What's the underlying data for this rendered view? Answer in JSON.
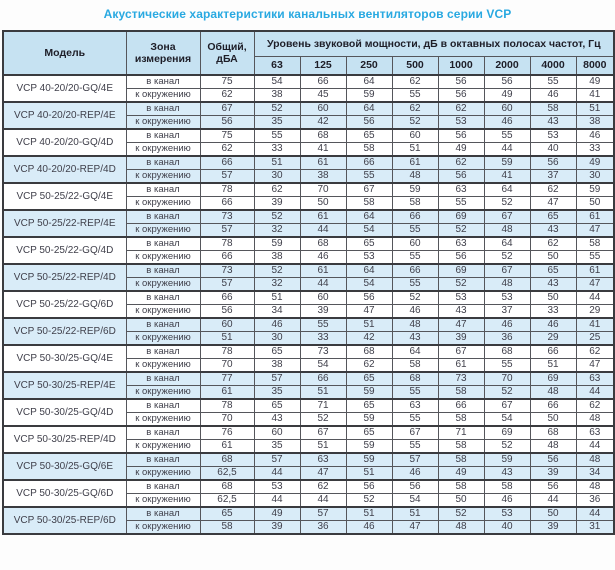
{
  "title": "Акустические характеристики канальных вентиляторов  серии VCP",
  "colors": {
    "title_blue": "#29a9e1",
    "header_bg": "#c6e2f2",
    "shaded_row_bg": "#d9ecf8",
    "border": "#55565b"
  },
  "table": {
    "headers": {
      "model": "Модель",
      "zone": "Зона\nизмерения",
      "total": "Общий,\nдБА",
      "span_header": "Уровень звуковой мощности, дБ в октавных полосах частот, Гц",
      "frequencies": [
        "63",
        "125",
        "250",
        "500",
        "1000",
        "2000",
        "4000",
        "8000"
      ]
    },
    "zone_labels": {
      "canal": "в канал",
      "ambient": "к окружению"
    },
    "rows": [
      {
        "model": "VCP 40-20/20-GQ/4E",
        "shaded": false,
        "canal": {
          "total": "75",
          "bands": [
            "54",
            "66",
            "64",
            "62",
            "56",
            "56",
            "55",
            "49"
          ]
        },
        "ambient": {
          "total": "62",
          "bands": [
            "38",
            "45",
            "59",
            "55",
            "56",
            "49",
            "46",
            "41"
          ]
        }
      },
      {
        "model": "VCP 40-20/20-REP/4E",
        "shaded": true,
        "canal": {
          "total": "67",
          "bands": [
            "52",
            "60",
            "64",
            "62",
            "62",
            "60",
            "58",
            "51"
          ]
        },
        "ambient": {
          "total": "56",
          "bands": [
            "35",
            "42",
            "56",
            "52",
            "53",
            "46",
            "43",
            "38"
          ]
        }
      },
      {
        "model": "VCP 40-20/20-GQ/4D",
        "shaded": false,
        "canal": {
          "total": "75",
          "bands": [
            "55",
            "68",
            "65",
            "60",
            "56",
            "55",
            "53",
            "46"
          ]
        },
        "ambient": {
          "total": "62",
          "bands": [
            "33",
            "41",
            "58",
            "51",
            "49",
            "44",
            "40",
            "33"
          ]
        }
      },
      {
        "model": "VCP 40-20/20-REP/4D",
        "shaded": true,
        "canal": {
          "total": "66",
          "bands": [
            "51",
            "61",
            "66",
            "61",
            "62",
            "59",
            "56",
            "49"
          ]
        },
        "ambient": {
          "total": "57",
          "bands": [
            "30",
            "38",
            "55",
            "48",
            "56",
            "41",
            "37",
            "30"
          ]
        }
      },
      {
        "model": "VCP 50-25/22-GQ/4E",
        "shaded": false,
        "canal": {
          "total": "78",
          "bands": [
            "62",
            "70",
            "67",
            "59",
            "63",
            "64",
            "62",
            "59"
          ]
        },
        "ambient": {
          "total": "66",
          "bands": [
            "39",
            "50",
            "58",
            "58",
            "55",
            "52",
            "47",
            "50"
          ]
        }
      },
      {
        "model": "VCP 50-25/22-REP/4E",
        "shaded": true,
        "canal": {
          "total": "73",
          "bands": [
            "52",
            "61",
            "64",
            "66",
            "69",
            "67",
            "65",
            "61"
          ]
        },
        "ambient": {
          "total": "57",
          "bands": [
            "32",
            "44",
            "54",
            "55",
            "52",
            "48",
            "43",
            "47"
          ]
        }
      },
      {
        "model": "VCP 50-25/22-GQ/4D",
        "shaded": false,
        "canal": {
          "total": "78",
          "bands": [
            "59",
            "68",
            "65",
            "60",
            "63",
            "64",
            "62",
            "58"
          ]
        },
        "ambient": {
          "total": "66",
          "bands": [
            "38",
            "46",
            "53",
            "55",
            "56",
            "52",
            "50",
            "55"
          ]
        }
      },
      {
        "model": "VCP 50-25/22-REP/4D",
        "shaded": true,
        "canal": {
          "total": "73",
          "bands": [
            "52",
            "61",
            "64",
            "66",
            "69",
            "67",
            "65",
            "61"
          ]
        },
        "ambient": {
          "total": "57",
          "bands": [
            "32",
            "44",
            "54",
            "55",
            "52",
            "48",
            "43",
            "47"
          ]
        }
      },
      {
        "model": "VCP 50-25/22-GQ/6D",
        "shaded": false,
        "canal": {
          "total": "66",
          "bands": [
            "51",
            "60",
            "56",
            "52",
            "53",
            "53",
            "50",
            "44"
          ]
        },
        "ambient": {
          "total": "56",
          "bands": [
            "34",
            "39",
            "47",
            "46",
            "43",
            "37",
            "33",
            "29"
          ]
        }
      },
      {
        "model": "VCP 50-25/22-REP/6D",
        "shaded": true,
        "canal": {
          "total": "60",
          "bands": [
            "46",
            "55",
            "51",
            "48",
            "47",
            "46",
            "46",
            "41"
          ]
        },
        "ambient": {
          "total": "51",
          "bands": [
            "30",
            "33",
            "42",
            "43",
            "39",
            "36",
            "29",
            "25"
          ]
        }
      },
      {
        "model": "VCP 50-30/25-GQ/4E",
        "shaded": false,
        "canal": {
          "total": "78",
          "bands": [
            "65",
            "73",
            "68",
            "64",
            "67",
            "68",
            "66",
            "62"
          ]
        },
        "ambient": {
          "total": "70",
          "bands": [
            "38",
            "54",
            "62",
            "58",
            "61",
            "55",
            "51",
            "47"
          ]
        }
      },
      {
        "model": "VCP 50-30/25-REP/4E",
        "shaded": true,
        "canal": {
          "total": "77",
          "bands": [
            "57",
            "66",
            "65",
            "68",
            "73",
            "70",
            "69",
            "63"
          ]
        },
        "ambient": {
          "total": "61",
          "bands": [
            "35",
            "51",
            "59",
            "55",
            "58",
            "52",
            "48",
            "44"
          ]
        }
      },
      {
        "model": "VCP 50-30/25-GQ/4D",
        "shaded": false,
        "canal": {
          "total": "78",
          "bands": [
            "65",
            "71",
            "65",
            "63",
            "66",
            "67",
            "66",
            "62"
          ]
        },
        "ambient": {
          "total": "70",
          "bands": [
            "43",
            "52",
            "59",
            "55",
            "58",
            "54",
            "50",
            "48"
          ]
        }
      },
      {
        "model": "VCP 50-30/25-REP/4D",
        "shaded": false,
        "canal": {
          "total": "76",
          "bands": [
            "60",
            "67",
            "65",
            "67",
            "71",
            "69",
            "68",
            "63"
          ]
        },
        "ambient": {
          "total": "61",
          "bands": [
            "35",
            "51",
            "59",
            "55",
            "58",
            "52",
            "48",
            "44"
          ]
        }
      },
      {
        "model": "VCP 50-30/25-GQ/6E",
        "shaded": true,
        "canal": {
          "total": "68",
          "bands": [
            "57",
            "63",
            "59",
            "57",
            "58",
            "59",
            "56",
            "48"
          ]
        },
        "ambient": {
          "total": "62,5",
          "bands": [
            "44",
            "47",
            "51",
            "46",
            "49",
            "43",
            "39",
            "34"
          ]
        }
      },
      {
        "model": "VCP 50-30/25-GQ/6D",
        "shaded": false,
        "canal": {
          "total": "68",
          "bands": [
            "53",
            "62",
            "56",
            "56",
            "58",
            "58",
            "56",
            "48"
          ]
        },
        "ambient": {
          "total": "62,5",
          "bands": [
            "44",
            "44",
            "52",
            "54",
            "50",
            "46",
            "44",
            "36"
          ]
        }
      },
      {
        "model": "VCP 50-30/25-REP/6D",
        "shaded": true,
        "canal": {
          "total": "65",
          "bands": [
            "49",
            "57",
            "51",
            "51",
            "52",
            "53",
            "50",
            "44"
          ]
        },
        "ambient": {
          "total": "58",
          "bands": [
            "39",
            "36",
            "46",
            "47",
            "48",
            "40",
            "39",
            "31"
          ]
        }
      }
    ]
  }
}
